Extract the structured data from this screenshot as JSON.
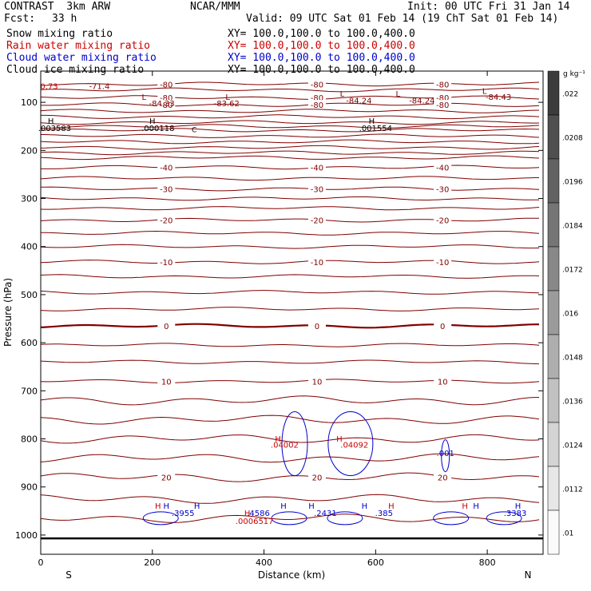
{
  "header": {
    "model": "CONTRAST  3km ARW",
    "org": "NCAR/MMM",
    "init": "Init: 00 UTC Fri 31 Jan 14",
    "fcst_label": "Fcst:",
    "fcst_value": "33 h",
    "valid": "Valid: 09 UTC Sat 01 Feb 14 (19 ChT Sat 01 Feb 14)"
  },
  "fields": [
    {
      "name": "Snow mixing ratio",
      "xy": "XY= 100.0,100.0 to 100.0,400.0",
      "color": "#000000"
    },
    {
      "name": "Rain water mixing ratio",
      "xy": "XY= 100.0,100.0 to 100.0,400.0",
      "color": "#cc0000"
    },
    {
      "name": "Cloud water mixing ratio",
      "xy": "XY= 100.0,100.0 to 100.0,400.0",
      "color": "#0000cc"
    },
    {
      "name": "Cloud ice mixing ratio",
      "xy": "XY= 100.0,100.0 to 100.0,400.0",
      "color": "#000000"
    }
  ],
  "chart_data": {
    "type": "contour",
    "xlabel": "Distance (km)",
    "ylabel": "Pressure (hPa)",
    "xlim": [
      0,
      900
    ],
    "ylim": [
      1040,
      35
    ],
    "x_ticks": [
      0,
      200,
      400,
      600,
      800
    ],
    "y_ticks": [
      100,
      200,
      300,
      400,
      500,
      600,
      700,
      800,
      900,
      1000
    ],
    "left_end": "S",
    "right_end": "N",
    "colorbar": {
      "unit": "g kg⁻¹",
      "ticks": [
        ".022",
        ".0208",
        ".0196",
        ".0184",
        ".0172",
        ".016",
        ".0148",
        ".0136",
        ".0124",
        ".0112",
        ".01"
      ]
    },
    "temperature_contours": [
      {
        "p": 62,
        "label": "-80"
      },
      {
        "p": 74,
        "label": ""
      },
      {
        "p": 90,
        "label": "-80"
      },
      {
        "p": 105,
        "label": "-80"
      },
      {
        "p": 118,
        "label": ""
      },
      {
        "p": 130,
        "label": ""
      },
      {
        "p": 142,
        "label": ""
      },
      {
        "p": 150,
        "label": ""
      },
      {
        "p": 158,
        "label": ""
      },
      {
        "p": 170,
        "label": ""
      },
      {
        "p": 182,
        "label": ""
      },
      {
        "p": 194,
        "label": ""
      },
      {
        "p": 205,
        "label": ""
      },
      {
        "p": 215,
        "label": ""
      },
      {
        "p": 235,
        "label": "-40"
      },
      {
        "p": 258,
        "label": ""
      },
      {
        "p": 280,
        "label": "-30"
      },
      {
        "p": 300,
        "label": ""
      },
      {
        "p": 320,
        "label": ""
      },
      {
        "p": 345,
        "label": "-20"
      },
      {
        "p": 372,
        "label": ""
      },
      {
        "p": 400,
        "label": ""
      },
      {
        "p": 432,
        "label": "-10"
      },
      {
        "p": 462,
        "label": ""
      },
      {
        "p": 495,
        "label": ""
      },
      {
        "p": 530,
        "label": ""
      },
      {
        "p": 565,
        "label": "0"
      },
      {
        "p": 605,
        "label": ""
      },
      {
        "p": 640,
        "label": ""
      },
      {
        "p": 680,
        "label": "10"
      },
      {
        "p": 720,
        "label": ""
      },
      {
        "p": 760,
        "label": ""
      },
      {
        "p": 800,
        "label": ""
      },
      {
        "p": 840,
        "label": ""
      },
      {
        "p": 880,
        "label": "20"
      },
      {
        "p": 925,
        "label": ""
      },
      {
        "p": 965,
        "label": ""
      }
    ],
    "extra_labels": [
      {
        "x": 15,
        "p": 72,
        "text": "0.73",
        "color": "#cc0000"
      },
      {
        "x": 105,
        "p": 72,
        "text": "-71.4",
        "color": "#800000"
      },
      {
        "x": 217,
        "p": 108,
        "text": "-84.33",
        "color": "#800000"
      },
      {
        "x": 333,
        "p": 108,
        "text": "-83.62",
        "color": "#800000"
      },
      {
        "x": 570,
        "p": 102,
        "text": "-84.24",
        "color": "#800000"
      },
      {
        "x": 683,
        "p": 102,
        "text": "-84.24",
        "color": "#800000"
      },
      {
        "x": 820,
        "p": 95,
        "text": "-84.43",
        "color": "#800000"
      },
      {
        "x": 25,
        "p": 160,
        "text": ".003583",
        "color": "#000000"
      },
      {
        "x": 210,
        "p": 160,
        "text": ".000118",
        "color": "#000000"
      },
      {
        "x": 600,
        "p": 160,
        "text": ".001554",
        "color": "#000000"
      },
      {
        "x": 725,
        "p": 836,
        "text": ".001",
        "color": "#0000cc"
      },
      {
        "x": 437,
        "p": 818,
        "text": ".04002",
        "color": "#cc0000"
      },
      {
        "x": 562,
        "p": 818,
        "text": ".04092",
        "color": "#cc0000"
      },
      {
        "x": 255,
        "p": 960,
        "text": ".3955",
        "color": "#0000cc"
      },
      {
        "x": 390,
        "p": 960,
        "text": ".4586",
        "color": "#0000cc"
      },
      {
        "x": 510,
        "p": 960,
        "text": ".2431",
        "color": "#0000cc"
      },
      {
        "x": 615,
        "p": 960,
        "text": ".385",
        "color": "#0000cc"
      },
      {
        "x": 850,
        "p": 960,
        "text": ".3383",
        "color": "#0000cc"
      },
      {
        "x": 383,
        "p": 977,
        "text": ".0006517",
        "color": "#cc0000"
      }
    ],
    "h_markers": [
      {
        "x": 18,
        "p": 145,
        "color": "#000000"
      },
      {
        "x": 200,
        "p": 145,
        "color": "#000000"
      },
      {
        "x": 593,
        "p": 145,
        "color": "#000000"
      },
      {
        "x": 425,
        "p": 806,
        "color": "#cc0000"
      },
      {
        "x": 535,
        "p": 806,
        "color": "#cc0000"
      },
      {
        "x": 210,
        "p": 945,
        "color": "#cc0000"
      },
      {
        "x": 225,
        "p": 945,
        "color": "#0000cc"
      },
      {
        "x": 280,
        "p": 945,
        "color": "#0000cc"
      },
      {
        "x": 435,
        "p": 945,
        "color": "#0000cc"
      },
      {
        "x": 485,
        "p": 945,
        "color": "#0000cc"
      },
      {
        "x": 580,
        "p": 945,
        "color": "#0000cc"
      },
      {
        "x": 628,
        "p": 945,
        "color": "#cc0000"
      },
      {
        "x": 760,
        "p": 945,
        "color": "#cc0000"
      },
      {
        "x": 780,
        "p": 945,
        "color": "#0000cc"
      },
      {
        "x": 855,
        "p": 945,
        "color": "#0000cc"
      },
      {
        "x": 370,
        "p": 960,
        "color": "#cc0000"
      }
    ],
    "l_markers": [
      {
        "x": 185,
        "p": 95
      },
      {
        "x": 335,
        "p": 95
      },
      {
        "x": 540,
        "p": 88
      },
      {
        "x": 640,
        "p": 88
      },
      {
        "x": 795,
        "p": 82
      }
    ],
    "low_labels": [
      {
        "x": 275,
        "p": 162,
        "text": "C"
      }
    ]
  }
}
